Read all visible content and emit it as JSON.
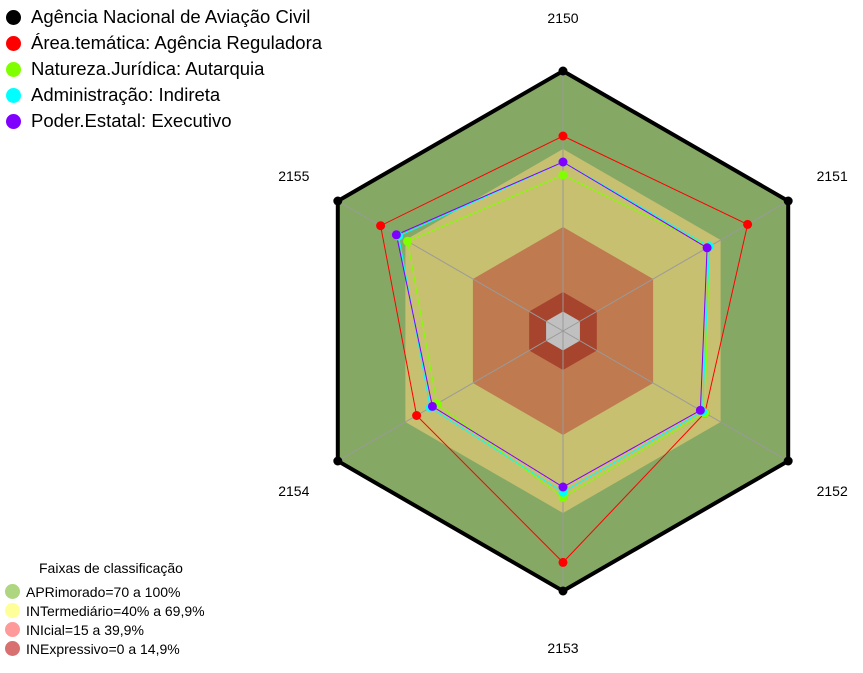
{
  "legend": [
    {
      "name": "Agência Nacional de Aviação Civil",
      "color": "#000000"
    },
    {
      "name": "Área.temática: Agência Reguladora",
      "color": "#ff0000"
    },
    {
      "name": "Natureza.Jurídica: Autarquia",
      "color": "#80ff00"
    },
    {
      "name": "Administração: Indireta",
      "color": "#00ffff"
    },
    {
      "name": "Poder.Estatal: Executivo",
      "color": "#8000ff"
    }
  ],
  "bands": {
    "title": "Faixas de classificação",
    "items": [
      {
        "label": "APRimorado=70 a 100%",
        "color": "#8bc34a"
      },
      {
        "label": "INTermediário=40% a 69,9%",
        "color": "#ffff80"
      },
      {
        "label": "INIcial=15 a 39,9%",
        "color": "#ff9a9a"
      },
      {
        "label": "INExpressivo=0 a 14,9%",
        "color": "#d97070"
      }
    ]
  },
  "chart_data": {
    "type": "radar",
    "axes": [
      "2150",
      "2151",
      "2152",
      "2153",
      "2154",
      "2155"
    ],
    "range": [
      0,
      100
    ],
    "bands": [
      {
        "from": 70,
        "to": 100,
        "color": "#86a865"
      },
      {
        "from": 40,
        "to": 70,
        "color": "#c7c070"
      },
      {
        "from": 15,
        "to": 40,
        "color": "#bf7a4f"
      },
      {
        "from": 0,
        "to": 15,
        "color": "#a6442e"
      }
    ],
    "center_hole_color": "#c0c0c0",
    "series": [
      {
        "name": "Agência Nacional de Aviação Civil",
        "color": "#000000",
        "values": [
          100,
          100,
          100,
          100,
          100,
          100
        ],
        "line_width": 4
      },
      {
        "name": "Área.temática: Agência Reguladora",
        "color": "#ff0000",
        "values": [
          75,
          82,
          63,
          89,
          65,
          81
        ],
        "line_width": 1
      },
      {
        "name": "Natureza.Jurídica: Autarquia",
        "color": "#80ff00",
        "values": [
          60,
          65,
          63,
          64,
          56,
          69
        ],
        "line_width": 1
      },
      {
        "name": "Administração: Indireta",
        "color": "#00ffff",
        "values": [
          65,
          65,
          62,
          62,
          59,
          73
        ],
        "line_width": 1
      },
      {
        "name": "Poder.Estatal: Executivo",
        "color": "#8000ff",
        "values": [
          65,
          64,
          61,
          60,
          58,
          74
        ],
        "line_width": 1
      }
    ]
  }
}
